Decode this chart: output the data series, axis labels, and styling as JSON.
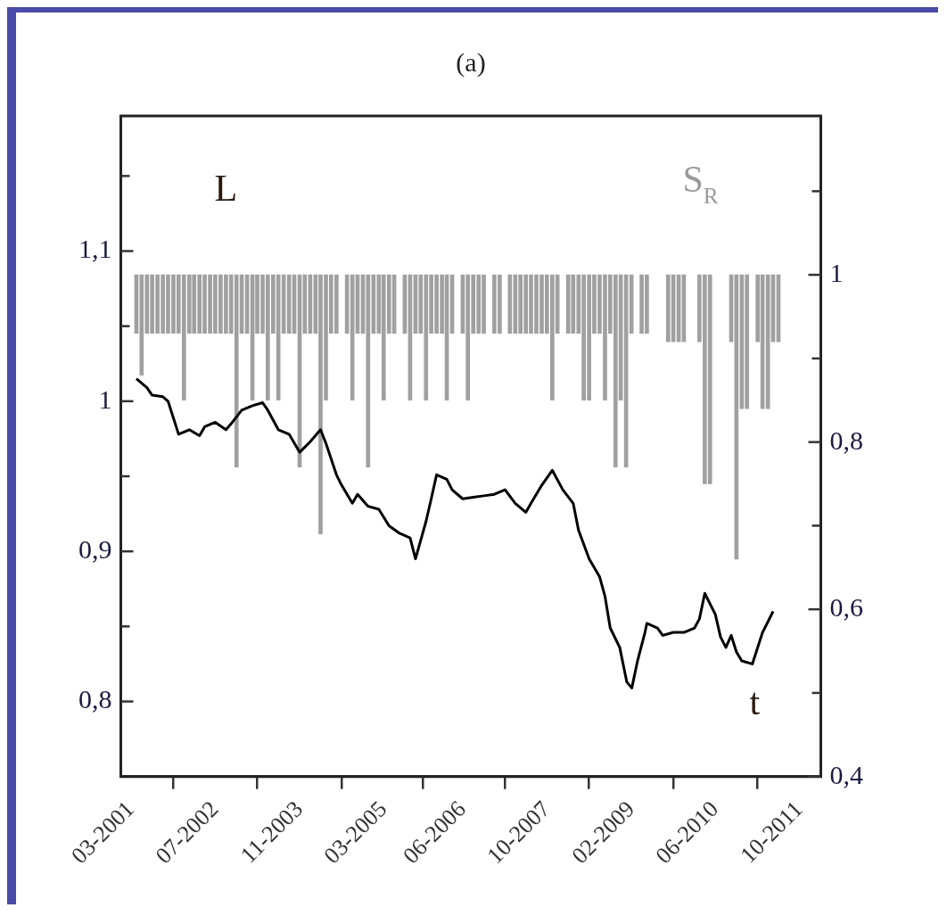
{
  "chart_data": {
    "type": "line",
    "title": "(a)",
    "xlabel": "t",
    "ylabel": "L",
    "y2label": "S$_{R}$",
    "xlim": [
      "2001-01",
      "2012-02"
    ],
    "xticks": [
      {
        "value": "2001-03",
        "label": "03-2001"
      },
      {
        "value": "2002-07",
        "label": "07-2002"
      },
      {
        "value": "2003-11",
        "label": "11-2003"
      },
      {
        "value": "2005-03",
        "label": "03-2005"
      },
      {
        "value": "2006-06",
        "label": "06-2006"
      },
      {
        "value": "2007-10",
        "label": "10-2007"
      },
      {
        "value": "2009-02",
        "label": "02-2009"
      },
      {
        "value": "2010-06",
        "label": "06-2010"
      },
      {
        "value": "2011-10",
        "label": "10-2011"
      }
    ],
    "ylim": [
      0.75,
      1.19
    ],
    "yticks": [
      {
        "value": 0.8,
        "label": "0,8"
      },
      {
        "value": 0.85,
        "label": null
      },
      {
        "value": 0.9,
        "label": "0,9"
      },
      {
        "value": 0.95,
        "label": null
      },
      1,
      {
        "value": 1.05,
        "label": null
      },
      {
        "value": 1.1,
        "label": "1,1"
      },
      {
        "value": 1.15,
        "label": null
      }
    ],
    "y2lim": [
      0.4,
      1.19
    ],
    "y2ticks": [
      {
        "value": 0.4,
        "label": "0,4"
      },
      {
        "value": 0.5,
        "label": null
      },
      {
        "value": 0.6,
        "label": "0,6"
      },
      {
        "value": 0.7,
        "label": null
      },
      {
        "value": 0.8,
        "label": "0,8"
      },
      {
        "value": 0.9,
        "label": null
      },
      1,
      {
        "value": 1.1,
        "label": null
      }
    ],
    "grid": false,
    "legend": false,
    "marker": "none",
    "line_style": "solid",
    "series": [
      {
        "color": "#000000",
        "x": [
          "2001-04",
          "2001-06",
          "2001-07",
          "2001-09",
          "2001-10",
          "2001-12",
          "2002-02",
          "2002-04",
          "2002-05",
          "2002-07",
          "2002-09",
          "2002-10",
          "2002-12",
          "2003-02",
          "2003-04",
          "2003-05",
          "2003-07",
          "2003-09",
          "2003-11",
          "2004-01",
          "2004-03",
          "2004-04",
          "2004-06",
          "2004-07",
          "2004-09",
          "2004-10",
          "2004-12",
          "2005-02",
          "2005-04",
          "2005-06",
          "2005-08",
          "2005-09",
          "2005-11",
          "2005-12",
          "2006-01",
          "2006-03",
          "2006-04",
          "2006-06",
          "2006-08",
          "2006-10",
          "2006-12",
          "2007-02",
          "2007-04",
          "2007-06",
          "2007-07",
          "2007-09",
          "2007-11",
          "2008-01",
          "2008-03",
          "2008-04",
          "2008-06",
          "2008-08",
          "2008-09",
          "2008-10",
          "2008-11-25",
          "2009-01-05",
          "2009-02-03",
          "2009-03-08",
          "2009-04-20",
          "2009-05",
          "2009-07",
          "2009-08",
          "2009-10",
          "2009-12",
          "2010-02",
          "2010-03",
          "2010-04",
          "2010-06",
          "2010-07",
          "2010-08",
          "2010-09",
          "2010-10",
          "2010-11",
          "2011-01",
          "2011-02",
          "2011-03",
          "2011-05"
        ],
        "values": [
          1.015,
          1.009,
          1.004,
          1.003,
          1.0,
          0.978,
          0.981,
          0.977,
          0.983,
          0.986,
          0.981,
          0.985,
          0.994,
          0.997,
          0.999,
          0.994,
          0.981,
          0.978,
          0.966,
          0.973,
          0.981,
          0.972,
          0.951,
          0.944,
          0.932,
          0.938,
          0.93,
          0.928,
          0.917,
          0.912,
          0.909,
          0.895,
          0.92,
          0.935,
          0.951,
          0.948,
          0.941,
          0.935,
          0.936,
          0.937,
          0.938,
          0.941,
          0.932,
          0.926,
          0.932,
          0.944,
          0.954,
          0.941,
          0.932,
          0.914,
          0.895,
          0.883,
          0.87,
          0.849,
          0.836,
          0.813,
          0.809,
          0.827,
          0.846,
          0.852,
          0.849,
          0.844,
          0.846,
          0.846,
          0.849,
          0.855,
          0.872,
          0.858,
          0.843,
          0.836,
          0.844,
          0.833,
          0.827,
          0.825,
          0.836,
          0.846,
          0.86
        ]
      },
      {
        "type": "bar",
        "axis": "y2",
        "color": "#a0a0a0",
        "x": [
          "2001-04",
          "2001-05",
          "2001-06",
          "2001-07",
          "2001-08",
          "2001-09",
          "2001-10",
          "2001-11",
          "2001-12",
          "2002-01",
          "2002-02",
          "2002-03",
          "2002-04",
          "2002-05",
          "2002-06",
          "2002-07",
          "2002-08",
          "2002-09",
          "2002-10",
          "2002-11",
          "2002-12",
          "2003-01",
          "2003-02",
          "2003-03",
          "2003-04",
          "2003-05",
          "2003-06",
          "2003-07",
          "2003-08",
          "2003-09",
          "2003-10",
          "2003-11",
          "2003-12",
          "2004-01",
          "2004-02",
          "2004-03",
          "2004-04",
          "2004-05",
          "2004-06",
          "2004-08",
          "2004-09",
          "2004-10",
          "2004-11",
          "2004-12",
          "2005-01",
          "2005-02",
          "2005-03",
          "2005-04",
          "2005-05",
          "2005-07",
          "2005-08",
          "2005-09",
          "2005-10",
          "2005-11",
          "2005-12",
          "2006-01",
          "2006-02",
          "2006-03",
          "2006-04",
          "2006-06",
          "2006-07",
          "2006-08",
          "2006-09",
          "2006-10",
          "2006-12",
          "2007-01",
          "2007-03",
          "2007-04",
          "2007-05",
          "2007-06",
          "2007-07",
          "2007-08",
          "2007-09",
          "2007-10",
          "2007-11",
          "2007-12",
          "2008-02",
          "2008-03",
          "2008-04",
          "2008-05",
          "2008-06",
          "2008-07",
          "2008-08",
          "2008-09",
          "2008-10",
          "2008-11",
          "2008-12",
          "2009-01",
          "2009-02",
          "2009-04",
          "2009-05",
          "2009-09",
          "2009-10",
          "2009-11",
          "2009-12",
          "2010-03",
          "2010-04",
          "2010-05",
          "2010-09",
          "2010-10",
          "2010-11",
          "2010-12",
          "2011-02",
          "2011-03",
          "2011-04",
          "2011-05",
          "2011-06"
        ],
        "base": [
          1,
          1,
          1,
          1,
          1,
          1,
          1,
          1,
          1,
          1,
          1,
          1,
          1,
          1,
          1,
          1,
          1,
          1,
          1,
          1,
          1,
          1,
          1,
          1,
          1,
          1,
          1,
          1,
          1,
          1,
          1,
          1,
          1,
          1,
          1,
          1,
          1,
          1,
          1,
          1,
          1,
          1,
          1,
          1,
          1,
          1,
          1,
          1,
          1,
          1,
          1,
          1,
          1,
          1,
          1,
          1,
          1,
          1,
          1,
          1,
          1,
          1,
          1,
          1,
          1,
          1,
          1,
          1,
          1,
          1,
          1,
          1,
          1,
          1,
          1,
          1,
          1,
          1,
          1,
          1,
          1,
          1,
          1,
          1,
          1,
          1,
          1,
          1,
          1,
          1,
          1,
          1,
          1,
          1,
          1,
          1,
          1,
          1,
          1,
          1,
          1,
          1,
          1,
          1,
          1,
          1,
          1
        ],
        "values": [
          -0.07,
          -0.12,
          -0.07,
          -0.07,
          -0.07,
          -0.07,
          -0.07,
          -0.07,
          -0.07,
          -0.15,
          -0.07,
          -0.07,
          -0.07,
          -0.07,
          -0.07,
          -0.07,
          -0.07,
          -0.07,
          -0.07,
          -0.23,
          -0.07,
          -0.07,
          -0.15,
          -0.07,
          -0.07,
          -0.15,
          -0.07,
          -0.15,
          -0.07,
          -0.07,
          -0.07,
          -0.23,
          -0.07,
          -0.07,
          -0.07,
          -0.31,
          -0.15,
          -0.07,
          -0.07,
          -0.07,
          -0.15,
          -0.07,
          -0.07,
          -0.23,
          -0.07,
          -0.07,
          -0.15,
          -0.07,
          -0.07,
          -0.07,
          -0.15,
          -0.07,
          -0.07,
          -0.15,
          -0.07,
          -0.07,
          -0.07,
          -0.15,
          -0.07,
          -0.07,
          -0.15,
          -0.07,
          -0.07,
          -0.07,
          -0.07,
          -0.07,
          -0.07,
          -0.07,
          -0.07,
          -0.07,
          -0.07,
          -0.07,
          -0.07,
          -0.07,
          -0.15,
          -0.07,
          -0.07,
          -0.07,
          -0.07,
          -0.15,
          -0.15,
          -0.07,
          -0.07,
          -0.15,
          -0.07,
          -0.23,
          -0.15,
          -0.23,
          -0.07,
          -0.07,
          -0.07,
          -0.08,
          -0.08,
          -0.08,
          -0.08,
          -0.08,
          -0.25,
          -0.25,
          -0.08,
          -0.34,
          -0.16,
          -0.16,
          -0.08,
          -0.16,
          -0.16,
          -0.08,
          -0.08
        ]
      }
    ]
  }
}
